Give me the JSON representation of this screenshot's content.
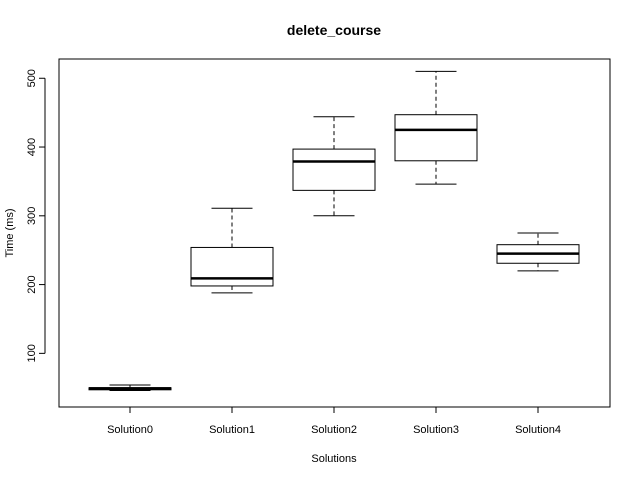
{
  "chart_data": {
    "type": "box",
    "title": "delete_course",
    "xlabel": "Solutions",
    "ylabel": "Time (ms)",
    "ylim": [
      22,
      528
    ],
    "y_ticks": [
      100,
      200,
      300,
      400,
      500
    ],
    "categories": [
      "Solution0",
      "Solution1",
      "Solution2",
      "Solution3",
      "Solution4"
    ],
    "boxes": [
      {
        "name": "Solution0",
        "whisker_low": 46,
        "q1": 47,
        "median": 49,
        "q3": 50,
        "whisker_high": 54
      },
      {
        "name": "Solution1",
        "whisker_low": 188,
        "q1": 198,
        "median": 209,
        "q3": 254,
        "whisker_high": 311
      },
      {
        "name": "Solution2",
        "whisker_low": 300,
        "q1": 337,
        "median": 379,
        "q3": 397,
        "whisker_high": 444
      },
      {
        "name": "Solution3",
        "whisker_low": 346,
        "q1": 380,
        "median": 425,
        "q3": 447,
        "whisker_high": 510
      },
      {
        "name": "Solution4",
        "whisker_low": 220,
        "q1": 231,
        "median": 245,
        "q3": 258,
        "whisker_high": 275
      }
    ],
    "grid": false,
    "legend": "none",
    "colors": {
      "line": "#000000",
      "box_fill": "#ffffff",
      "background": "#ffffff"
    }
  }
}
